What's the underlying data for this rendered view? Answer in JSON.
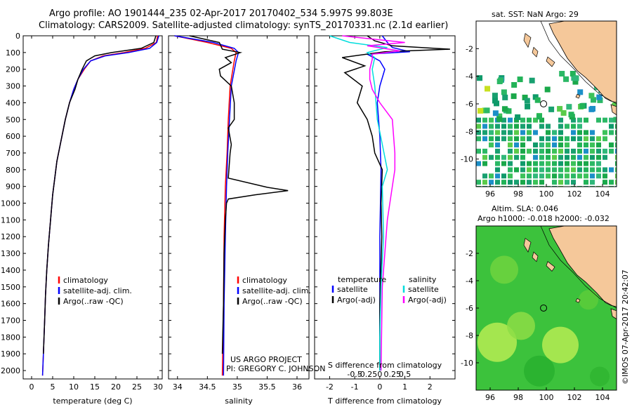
{
  "header": {
    "title_line1": "Argo profile: AO 1901444_235 02-Apr-2017 20170402_534 5.997S 99.803E",
    "title_line2": "Climatology: CARS2009. Satellite-adjusted climatology: synTS_20170331.nc (2.1d earlier)"
  },
  "map_top_title": "sat. SST: NaN Argo: 29",
  "map_bottom_title1": "Altim. SLA: 0.046",
  "map_bottom_title2": "Argo h1000: -0.018 h2000: -0.032",
  "credit_project": "US ARGO PROJECT",
  "credit_pi": "PI: GREGORY C. JOHNSON",
  "watermark": "©IMOS 07-Apr-2017 20:42:07",
  "legend_temp": [
    "climatology",
    "satellite-adj. clim.",
    "Argo(..raw -QC)"
  ],
  "legend_sal": [
    "climatology",
    "satellite-adj. clim.",
    "Argo(..raw -QC)"
  ],
  "legend_diff_head": [
    "temperature",
    "salinity"
  ],
  "legend_diff_t": [
    "satellite",
    "Argo(-adj)"
  ],
  "legend_diff_s": [
    "satellite",
    "Argo(-adj)"
  ],
  "colors": {
    "climatology": "#ff0000",
    "satellite": "#0000ff",
    "argo": "#000000",
    "s_sat": "#00dddd",
    "s_argo": "#ff00ff",
    "land": "#f5c89a"
  },
  "chart_data": [
    {
      "type": "line",
      "panel": "temperature",
      "xlabel": "temperature (deg C)",
      "ylabel": "",
      "xlim": [
        -2,
        31
      ],
      "ylim": [
        2050,
        0
      ],
      "xticks": [
        0,
        5,
        10,
        15,
        20,
        25,
        30
      ],
      "yticks": [
        0,
        100,
        200,
        300,
        400,
        500,
        600,
        700,
        800,
        900,
        1000,
        1100,
        1200,
        1300,
        1400,
        1500,
        1600,
        1700,
        1800,
        1900,
        2000
      ],
      "series": [
        {
          "name": "climatology",
          "color": "#ff0000",
          "x": [
            29.9,
            29.6,
            27,
            22,
            17,
            14,
            12.5,
            11,
            10,
            9,
            8,
            6.8,
            6,
            5.5,
            5,
            4.5,
            4,
            3.6,
            3.3,
            3.1,
            2.8,
            2.6
          ],
          "y": [
            0,
            40,
            75,
            100,
            120,
            150,
            200,
            260,
            320,
            400,
            500,
            650,
            750,
            850,
            950,
            1100,
            1250,
            1400,
            1550,
            1700,
            1900,
            2030
          ]
        },
        {
          "name": "satellite-adj. clim.",
          "color": "#0000ff",
          "x": [
            30.2,
            29.7,
            28,
            23,
            17.5,
            14,
            12.3,
            11,
            10,
            9,
            8,
            6.8,
            6,
            5.5,
            5,
            4.5,
            4,
            3.6,
            3.3,
            3.1,
            2.8,
            2.6
          ],
          "y": [
            0,
            40,
            75,
            100,
            120,
            150,
            200,
            260,
            320,
            400,
            500,
            650,
            750,
            850,
            950,
            1100,
            1250,
            1400,
            1550,
            1700,
            1900,
            2030
          ]
        },
        {
          "name": "Argo(..raw -QC)",
          "color": "#000000",
          "x": [
            29.5,
            29,
            26,
            19,
            15,
            13,
            12,
            11,
            10.3,
            9,
            8,
            6.8,
            6,
            5.5,
            5,
            4.5,
            4,
            3.6,
            3.3,
            3.1,
            2.8
          ],
          "y": [
            0,
            40,
            75,
            100,
            120,
            150,
            200,
            260,
            320,
            400,
            500,
            650,
            750,
            850,
            950,
            1100,
            1250,
            1400,
            1550,
            1700,
            1900
          ]
        }
      ]
    },
    {
      "type": "line",
      "panel": "salinity",
      "xlabel": "salinity",
      "ylabel": "",
      "xlim": [
        33.85,
        36.2
      ],
      "ylim": [
        2050,
        0
      ],
      "xticks": [
        34,
        34.5,
        35,
        35.5,
        36
      ],
      "series": [
        {
          "name": "climatology",
          "color": "#ff0000",
          "x": [
            33.95,
            34.5,
            34.9,
            34.98,
            34.95,
            34.88,
            34.85,
            34.83,
            34.8,
            34.78,
            34.77,
            34.75
          ],
          "y": [
            0,
            40,
            75,
            100,
            150,
            300,
            500,
            700,
            900,
            1200,
            1600,
            2030
          ]
        },
        {
          "name": "satellite-adj. clim.",
          "color": "#0000ff",
          "x": [
            33.95,
            34.6,
            34.95,
            35.02,
            34.98,
            34.9,
            34.87,
            34.84,
            34.82,
            34.8,
            34.78,
            34.77
          ],
          "y": [
            0,
            40,
            75,
            100,
            150,
            300,
            500,
            700,
            900,
            1200,
            1600,
            2030
          ]
        },
        {
          "name": "Argo(..raw -QC)",
          "color": "#000000",
          "x": [
            34.2,
            34.7,
            34.75,
            35.05,
            34.8,
            34.9,
            34.7,
            34.72,
            34.9,
            34.95,
            34.95,
            34.85,
            34.9,
            34.88,
            34.85,
            35.5,
            35.85,
            35.3,
            34.85,
            34.82,
            34.8,
            34.78,
            34.77,
            34.75
          ],
          "y": [
            0,
            40,
            80,
            100,
            130,
            160,
            200,
            240,
            300,
            400,
            500,
            550,
            650,
            700,
            850,
            905,
            925,
            950,
            975,
            1000,
            1100,
            1300,
            1600,
            1900
          ]
        }
      ]
    },
    {
      "type": "line",
      "panel": "difference",
      "xlabel": "T difference from climatology",
      "xlabel2": "S difference from climatology",
      "xlim": [
        -2.6,
        3.0
      ],
      "ylim": [
        2050,
        0
      ],
      "xticks": [
        -2,
        -1,
        0,
        1,
        2
      ],
      "xticks_s": [
        -0.5,
        -0.25,
        0,
        0.25,
        0.5
      ],
      "series": [
        {
          "name": "temperature satellite",
          "color": "#0000ff",
          "x": [
            0.1,
            0.3,
            0.5,
            1.2,
            -0.5,
            0,
            0.2,
            0,
            -0.1,
            0,
            0.05,
            0,
            0,
            0,
            0
          ],
          "y": [
            0,
            40,
            70,
            95,
            110,
            150,
            200,
            300,
            400,
            600,
            800,
            1200,
            1600,
            1900,
            2000
          ]
        },
        {
          "name": "temperature Argo(-adj)",
          "color": "#000000",
          "x": [
            -0.5,
            -0.2,
            0.5,
            2.8,
            0.2,
            -1.5,
            -0.6,
            -1.4,
            -0.7,
            -0.9,
            -0.5,
            -0.3,
            -0.2,
            0.1,
            0.05,
            0.08,
            0,
            0
          ],
          "y": [
            0,
            30,
            60,
            80,
            95,
            130,
            180,
            220,
            300,
            400,
            500,
            600,
            700,
            800,
            1000,
            1200,
            1600,
            2000
          ]
        },
        {
          "name": "salinity satellite",
          "color": "#00dddd",
          "x": [
            -2,
            -1.2,
            0.3,
            -0.5,
            -0.2,
            -0.3,
            -0.2,
            -0.1,
            0.3,
            0.1,
            0.15,
            0.05,
            0,
            0
          ],
          "y": [
            0,
            40,
            70,
            100,
            130,
            200,
            300,
            500,
            800,
            900,
            1200,
            1500,
            1800,
            2000
          ]
        },
        {
          "name": "salinity Argo(-adj)",
          "color": "#ff00ff",
          "x": [
            -1.5,
            1.0,
            -0.5,
            0.8,
            -0.3,
            -0.3,
            -0.4,
            -0.4,
            -0.3,
            0,
            0.5,
            0.6,
            0.6,
            0.5,
            0.3,
            0.1,
            0.05
          ],
          "y": [
            0,
            40,
            60,
            90,
            110,
            140,
            200,
            260,
            320,
            400,
            500,
            700,
            800,
            900,
            1100,
            1500,
            2000
          ]
        }
      ]
    },
    {
      "type": "heatmap",
      "panel": "sat. SST map",
      "title": "sat. SST: NaN Argo: 29",
      "xlim": [
        95,
        105
      ],
      "ylim": [
        -12,
        0
      ],
      "xticks": [
        96,
        98,
        100,
        102,
        104
      ],
      "yticks": [
        -2,
        -4,
        -6,
        -8,
        -10
      ],
      "argo_position": [
        99.803,
        -5.997
      ]
    },
    {
      "type": "heatmap",
      "panel": "altimetry SLA map",
      "title": "Altim. SLA: 0.046",
      "subtitle": "Argo h1000: -0.018 h2000: -0.032",
      "xlim": [
        95,
        105
      ],
      "ylim": [
        -12,
        0
      ],
      "xticks": [
        96,
        98,
        100,
        102,
        104
      ],
      "yticks": [
        -2,
        -4,
        -6,
        -8,
        -10
      ],
      "argo_position": [
        99.803,
        -5.997
      ]
    }
  ]
}
